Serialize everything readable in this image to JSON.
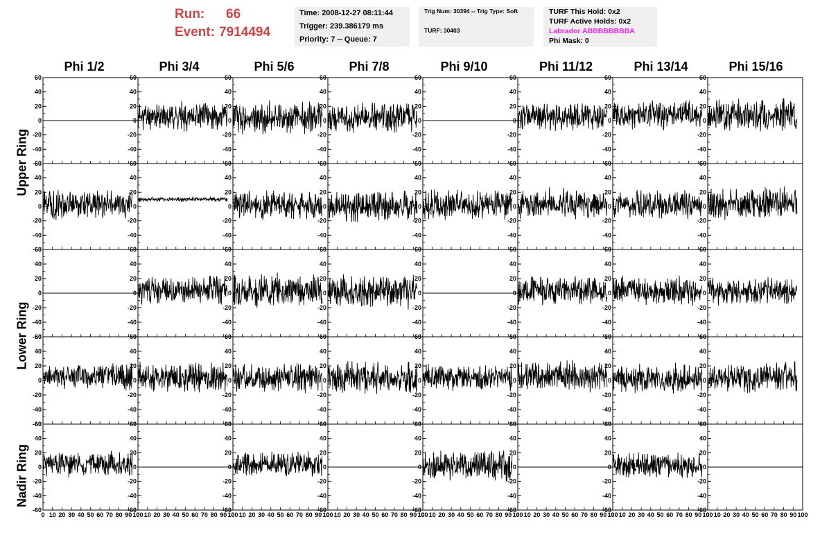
{
  "run": {
    "run_label": "Run:",
    "run_value": "66",
    "event_label": "Event:",
    "event_value": "7914494"
  },
  "time_box": {
    "line1": "Time: 2008-12-27 08:11:44",
    "line2": "Trigger: 239.386179 ms",
    "line3": "Priority: 7 -- Queue: 7"
  },
  "trig_box": {
    "line1": "Trig Num: 30394 -- Trig Type: Soft",
    "line2": "TURF: 30403"
  },
  "turf_box": {
    "line1": "TURF This Hold: 0x2",
    "line2": "TURF Active Holds: 0x2",
    "line3": "Labrador ABBBBBBBBA",
    "line4": "Phi Mask: 0"
  },
  "columns": [
    "Phi 1/2",
    "Phi 3/4",
    "Phi 5/6",
    "Phi 7/8",
    "Phi 9/10",
    "Phi 11/12",
    "Phi 13/14",
    "Phi 15/16"
  ],
  "ring_labels": {
    "upper": "Upper Ring",
    "lower": "Lower Ring",
    "nadir": "Nadir Ring"
  },
  "colors": {
    "run_text": "#cc4444",
    "labrador_text": "#ee22ee",
    "info_bg": "#efefef",
    "trace": "#000000"
  },
  "chart_data": {
    "type": "line",
    "description_rows": 5,
    "ylim": [
      -60,
      60
    ],
    "xlim": [
      0,
      100
    ],
    "y_ticks": [
      -60,
      -40,
      -20,
      0,
      20,
      40,
      60
    ],
    "x_ticks": [
      0,
      10,
      20,
      30,
      40,
      50,
      60,
      70,
      80,
      90,
      100
    ],
    "x_tick_labels": [
      "0",
      "10",
      "20",
      "30",
      "40",
      "50",
      "60",
      "70",
      "80",
      "90",
      "100"
    ],
    "panels": [
      [
        {
          "state": "flat"
        },
        {
          "state": "noise",
          "amp": 12,
          "offset": 6,
          "seed": 11
        },
        {
          "state": "noise",
          "amp": 14,
          "offset": 4,
          "seed": 12
        },
        {
          "state": "noise",
          "amp": 13,
          "offset": 4,
          "seed": 13
        },
        {
          "state": "flat"
        },
        {
          "state": "noise",
          "amp": 12,
          "offset": 6,
          "seed": 15
        },
        {
          "state": "noise",
          "amp": 12,
          "offset": 8,
          "seed": 16
        },
        {
          "state": "noise",
          "amp": 14,
          "offset": 8,
          "seed": 17
        }
      ],
      [
        {
          "state": "noise",
          "amp": 13,
          "offset": 3,
          "seed": 21
        },
        {
          "state": "noise",
          "amp": 2,
          "offset": 10,
          "seed": 22
        },
        {
          "state": "noise",
          "amp": 13,
          "offset": 3,
          "seed": 23
        },
        {
          "state": "noise",
          "amp": 13,
          "offset": 0,
          "seed": 24
        },
        {
          "state": "noise",
          "amp": 13,
          "offset": 2,
          "seed": 25
        },
        {
          "state": "noise",
          "amp": 13,
          "offset": 4,
          "seed": 26
        },
        {
          "state": "noise",
          "amp": 12,
          "offset": 2,
          "seed": 27
        },
        {
          "state": "noise",
          "amp": 14,
          "offset": 4,
          "seed": 28
        }
      ],
      [
        {
          "state": "flat"
        },
        {
          "state": "noise",
          "amp": 12,
          "offset": 4,
          "seed": 31
        },
        {
          "state": "noise",
          "amp": 14,
          "offset": 4,
          "seed": 32
        },
        {
          "state": "noise",
          "amp": 14,
          "offset": 2,
          "seed": 33
        },
        {
          "state": "flat"
        },
        {
          "state": "noise",
          "amp": 12,
          "offset": 4,
          "seed": 35
        },
        {
          "state": "noise",
          "amp": 12,
          "offset": 3,
          "seed": 36
        },
        {
          "state": "noise",
          "amp": 12,
          "offset": 3,
          "seed": 37
        }
      ],
      [
        {
          "state": "noise",
          "amp": 11,
          "offset": 5,
          "seed": 41
        },
        {
          "state": "noise",
          "amp": 13,
          "offset": 4,
          "seed": 42
        },
        {
          "state": "noise",
          "amp": 12,
          "offset": 4,
          "seed": 43
        },
        {
          "state": "noise",
          "amp": 14,
          "offset": 4,
          "seed": 44
        },
        {
          "state": "noise",
          "amp": 11,
          "offset": 4,
          "seed": 45
        },
        {
          "state": "noise",
          "amp": 13,
          "offset": 6,
          "seed": 46
        },
        {
          "state": "noise",
          "amp": 12,
          "offset": 3,
          "seed": 47
        },
        {
          "state": "noise",
          "amp": 14,
          "offset": 4,
          "seed": 48
        }
      ],
      [
        {
          "state": "noise",
          "amp": 11,
          "offset": 4,
          "seed": 51
        },
        {
          "state": "flat"
        },
        {
          "state": "noise",
          "amp": 11,
          "offset": 4,
          "seed": 53
        },
        {
          "state": "flat"
        },
        {
          "state": "noise",
          "amp": 13,
          "offset": 2,
          "seed": 55
        },
        {
          "state": "flat"
        },
        {
          "state": "noise",
          "amp": 11,
          "offset": 2,
          "seed": 57
        },
        {
          "state": "flat"
        }
      ]
    ]
  }
}
